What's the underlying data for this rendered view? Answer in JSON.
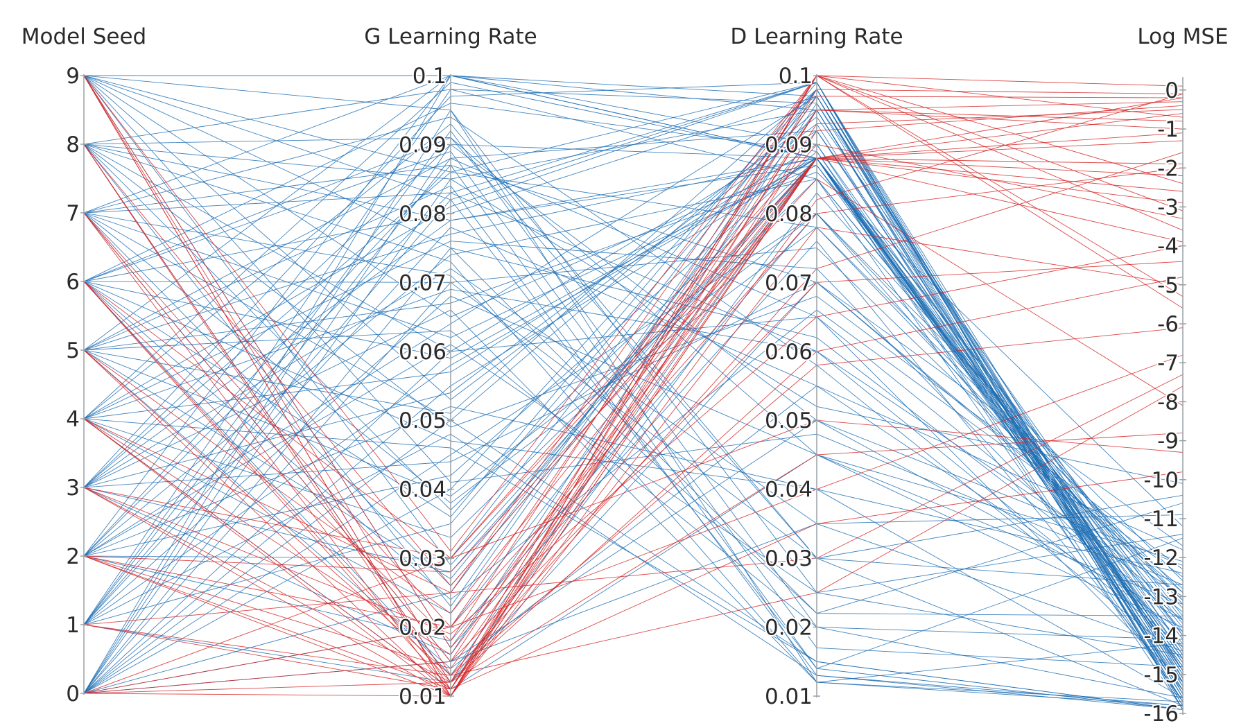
{
  "chart_data": {
    "type": "parallel_coordinates",
    "title": "",
    "axes": [
      {
        "key": "seed",
        "label": "Model Seed",
        "range": [
          0,
          9
        ],
        "ticks": [
          "0",
          "1",
          "2",
          "3",
          "4",
          "5",
          "6",
          "7",
          "8",
          "9"
        ],
        "tick_values": [
          0,
          1,
          2,
          3,
          4,
          5,
          6,
          7,
          8,
          9
        ]
      },
      {
        "key": "glr",
        "label": "G Learning Rate",
        "range": [
          0.01,
          0.1
        ],
        "ticks": [
          "0.01",
          "0.02",
          "0.03",
          "0.04",
          "0.05",
          "0.06",
          "0.07",
          "0.08",
          "0.09",
          "0.1"
        ],
        "tick_values": [
          0.01,
          0.02,
          0.03,
          0.04,
          0.05,
          0.06,
          0.07,
          0.08,
          0.09,
          0.1
        ]
      },
      {
        "key": "dlr",
        "label": "D Learning Rate",
        "range": [
          0.01,
          0.1
        ],
        "ticks": [
          "0.01",
          "0.02",
          "0.03",
          "0.04",
          "0.05",
          "0.06",
          "0.07",
          "0.08",
          "0.09",
          "0.1"
        ],
        "tick_values": [
          0.01,
          0.02,
          0.03,
          0.04,
          0.05,
          0.06,
          0.07,
          0.08,
          0.09,
          0.1
        ]
      },
      {
        "key": "logmse",
        "label": "Log MSE",
        "range": [
          -16,
          0.3
        ],
        "ticks": [
          "-16",
          "-15",
          "-14",
          "-13",
          "-12",
          "-11",
          "-10",
          "-9",
          "-8",
          "-7",
          "-6",
          "-5",
          "-4",
          "-3",
          "-2",
          "-1",
          "0"
        ],
        "tick_values": [
          -16,
          -15,
          -14,
          -13,
          -12,
          -11,
          -10,
          -9,
          -8,
          -7,
          -6,
          -5,
          -4,
          -3,
          -2,
          -1,
          0
        ]
      }
    ],
    "colors": {
      "good": "#1f6fb4",
      "bad": "#d62728"
    },
    "color_rule": "red when Log MSE is high (poor fit), blue when Log MSE is low",
    "series": [
      {
        "name": "good",
        "color": "#1f6fb4",
        "rows": [
          [
            0,
            0.1,
            0.097,
            -15.6
          ],
          [
            0,
            0.095,
            0.012,
            -14.2
          ],
          [
            0,
            0.09,
            0.088,
            -13.5
          ],
          [
            0,
            0.085,
            0.095,
            -15.8
          ],
          [
            0,
            0.07,
            0.03,
            -12.7
          ],
          [
            0,
            0.06,
            0.065,
            -15.2
          ],
          [
            0,
            0.055,
            0.088,
            -14.5
          ],
          [
            0,
            0.05,
            0.015,
            -15.9
          ],
          [
            0,
            0.045,
            0.08,
            -13.9
          ],
          [
            0,
            0.04,
            0.098,
            -15.1
          ],
          [
            0,
            0.02,
            0.088,
            -14.8
          ],
          [
            0,
            0.015,
            0.05,
            -12.2
          ],
          [
            0,
            0.025,
            0.095,
            -15.5
          ],
          [
            0,
            0.075,
            0.022,
            -10.6
          ],
          [
            1,
            0.098,
            0.085,
            -15.7
          ],
          [
            1,
            0.092,
            0.02,
            -14.1
          ],
          [
            1,
            0.082,
            0.099,
            -15.9
          ],
          [
            1,
            0.068,
            0.045,
            -13.2
          ],
          [
            1,
            0.058,
            0.088,
            -14.6
          ],
          [
            1,
            0.035,
            0.097,
            -15.3
          ],
          [
            1,
            0.012,
            0.07,
            -12.9
          ],
          [
            1,
            0.048,
            0.013,
            -15.8
          ],
          [
            1,
            0.078,
            0.055,
            -11.8
          ],
          [
            1,
            0.088,
            0.092,
            -14.9
          ],
          [
            2,
            0.1,
            0.09,
            -15.4
          ],
          [
            2,
            0.087,
            0.014,
            -15.9
          ],
          [
            2,
            0.074,
            0.085,
            -13.8
          ],
          [
            2,
            0.064,
            0.097,
            -15.0
          ],
          [
            2,
            0.052,
            0.04,
            -12.4
          ],
          [
            2,
            0.042,
            0.089,
            -14.7
          ],
          [
            2,
            0.03,
            0.098,
            -15.6
          ],
          [
            2,
            0.018,
            0.08,
            -13.1
          ],
          [
            2,
            0.083,
            0.06,
            -14.3
          ],
          [
            2,
            0.061,
            0.025,
            -11.4
          ],
          [
            3,
            0.097,
            0.099,
            -15.9
          ],
          [
            3,
            0.09,
            0.05,
            -13.6
          ],
          [
            3,
            0.079,
            0.087,
            -14.8
          ],
          [
            3,
            0.066,
            0.012,
            -15.7
          ],
          [
            3,
            0.054,
            0.094,
            -14.0
          ],
          [
            3,
            0.044,
            0.07,
            -12.8
          ],
          [
            3,
            0.028,
            0.088,
            -15.2
          ],
          [
            3,
            0.016,
            0.096,
            -14.4
          ],
          [
            3,
            0.072,
            0.035,
            -10.9
          ],
          [
            3,
            0.086,
            0.078,
            -13.3
          ],
          [
            4,
            0.099,
            0.088,
            -14.9
          ],
          [
            4,
            0.093,
            0.03,
            -15.8
          ],
          [
            4,
            0.081,
            0.099,
            -15.5
          ],
          [
            4,
            0.069,
            0.06,
            -13.0
          ],
          [
            4,
            0.057,
            0.09,
            -14.6
          ],
          [
            4,
            0.046,
            0.015,
            -15.9
          ],
          [
            4,
            0.033,
            0.085,
            -13.7
          ],
          [
            4,
            0.022,
            0.097,
            -15.1
          ],
          [
            4,
            0.011,
            0.045,
            -12.1
          ],
          [
            4,
            0.076,
            0.072,
            -14.2
          ],
          [
            5,
            0.1,
            0.095,
            -15.7
          ],
          [
            5,
            0.088,
            0.065,
            -13.4
          ],
          [
            5,
            0.077,
            0.088,
            -14.7
          ],
          [
            5,
            0.063,
            0.02,
            -15.6
          ],
          [
            5,
            0.051,
            0.098,
            -15.2
          ],
          [
            5,
            0.039,
            0.08,
            -12.6
          ],
          [
            5,
            0.027,
            0.092,
            -14.5
          ],
          [
            5,
            0.014,
            0.055,
            -13.9
          ],
          [
            5,
            0.084,
            0.013,
            -15.9
          ],
          [
            5,
            0.067,
            0.086,
            -11.2
          ],
          [
            6,
            0.096,
            0.089,
            -15.3
          ],
          [
            6,
            0.089,
            0.017,
            -14.8
          ],
          [
            6,
            0.08,
            0.097,
            -15.8
          ],
          [
            6,
            0.07,
            0.075,
            -13.1
          ],
          [
            6,
            0.059,
            0.088,
            -14.3
          ],
          [
            6,
            0.047,
            0.04,
            -15.6
          ],
          [
            6,
            0.036,
            0.099,
            -14.9
          ],
          [
            6,
            0.024,
            0.066,
            -12.5
          ],
          [
            6,
            0.013,
            0.088,
            -13.6
          ],
          [
            6,
            0.091,
            0.03,
            -10.4
          ],
          [
            7,
            0.1,
            0.088,
            -15.1
          ],
          [
            7,
            0.094,
            0.058,
            -14.6
          ],
          [
            7,
            0.083,
            0.099,
            -15.9
          ],
          [
            7,
            0.071,
            0.022,
            -13.5
          ],
          [
            7,
            0.062,
            0.087,
            -14.0
          ],
          [
            7,
            0.05,
            0.095,
            -15.4
          ],
          [
            7,
            0.038,
            0.078,
            -12.9
          ],
          [
            7,
            0.026,
            0.088,
            -15.7
          ],
          [
            7,
            0.015,
            0.035,
            -14.4
          ],
          [
            7,
            0.087,
            0.07,
            -11.7
          ],
          [
            8,
            0.098,
            0.096,
            -15.6
          ],
          [
            8,
            0.091,
            0.045,
            -13.8
          ],
          [
            8,
            0.079,
            0.088,
            -14.9
          ],
          [
            8,
            0.073,
            0.012,
            -15.8
          ],
          [
            8,
            0.06,
            0.092,
            -15.0
          ],
          [
            8,
            0.049,
            0.068,
            -12.3
          ],
          [
            8,
            0.037,
            0.088,
            -14.7
          ],
          [
            8,
            0.023,
            0.098,
            -15.5
          ],
          [
            8,
            0.012,
            0.083,
            -13.2
          ],
          [
            8,
            0.085,
            0.052,
            -10.1
          ],
          [
            9,
            0.1,
            0.088,
            -15.9
          ],
          [
            9,
            0.095,
            0.025,
            -14.5
          ],
          [
            9,
            0.086,
            0.099,
            -15.2
          ],
          [
            9,
            0.075,
            0.062,
            -13.6
          ],
          [
            9,
            0.065,
            0.088,
            -14.8
          ],
          [
            9,
            0.053,
            0.093,
            -15.7
          ],
          [
            9,
            0.041,
            0.048,
            -12.7
          ],
          [
            9,
            0.029,
            0.088,
            -14.1
          ],
          [
            9,
            0.017,
            0.076,
            -15.4
          ],
          [
            9,
            0.082,
            0.014,
            -11.5
          ]
        ]
      },
      {
        "name": "bad",
        "color": "#d62728",
        "rows": [
          [
            0,
            0.01,
            0.1,
            0.1
          ],
          [
            0,
            0.02,
            0.08,
            -2.0
          ],
          [
            0,
            0.015,
            0.095,
            -0.8
          ],
          [
            0,
            0.012,
            0.06,
            -4.8
          ],
          [
            0,
            0.03,
            0.09,
            -3.3
          ],
          [
            1,
            0.011,
            0.088,
            -0.2
          ],
          [
            1,
            0.025,
            0.1,
            -5.6
          ],
          [
            1,
            0.013,
            0.072,
            -1.6
          ],
          [
            2,
            0.01,
            0.093,
            -0.5
          ],
          [
            2,
            0.02,
            0.04,
            -6.8
          ],
          [
            2,
            0.014,
            0.088,
            -2.6
          ],
          [
            2,
            0.028,
            0.085,
            -8.1
          ],
          [
            2,
            0.011,
            0.098,
            -0.1
          ],
          [
            3,
            0.01,
            0.088,
            -1.1
          ],
          [
            3,
            0.019,
            0.065,
            -4.0
          ],
          [
            3,
            0.012,
            0.1,
            -3.1
          ],
          [
            3,
            0.03,
            0.05,
            -9.3
          ],
          [
            4,
            0.011,
            0.095,
            -0.3
          ],
          [
            4,
            0.016,
            0.088,
            -2.2
          ],
          [
            4,
            0.025,
            0.03,
            -7.3
          ],
          [
            4,
            0.01,
            0.078,
            -5.0
          ],
          [
            5,
            0.01,
            0.1,
            -0.7
          ],
          [
            5,
            0.022,
            0.088,
            -1.9
          ],
          [
            5,
            0.013,
            0.058,
            -6.1
          ],
          [
            6,
            0.011,
            0.092,
            -0.4
          ],
          [
            6,
            0.018,
            0.1,
            -3.6
          ],
          [
            6,
            0.03,
            0.088,
            -2.9
          ],
          [
            6,
            0.012,
            0.045,
            -8.8
          ],
          [
            7,
            0.01,
            0.088,
            -1.3
          ],
          [
            7,
            0.02,
            0.097,
            -0.2
          ],
          [
            7,
            0.015,
            0.07,
            -4.4
          ],
          [
            8,
            0.012,
            0.1,
            -2.4
          ],
          [
            8,
            0.026,
            0.088,
            -0.6
          ],
          [
            8,
            0.011,
            0.035,
            -9.8
          ],
          [
            9,
            0.01,
            0.095,
            -1.0
          ],
          [
            9,
            0.017,
            0.088,
            -3.9
          ],
          [
            9,
            0.031,
            0.1,
            -5.3
          ],
          [
            9,
            0.013,
            0.025,
            -7.6
          ],
          [
            9,
            0.01,
            0.082,
            -0.1
          ]
        ]
      }
    ]
  }
}
